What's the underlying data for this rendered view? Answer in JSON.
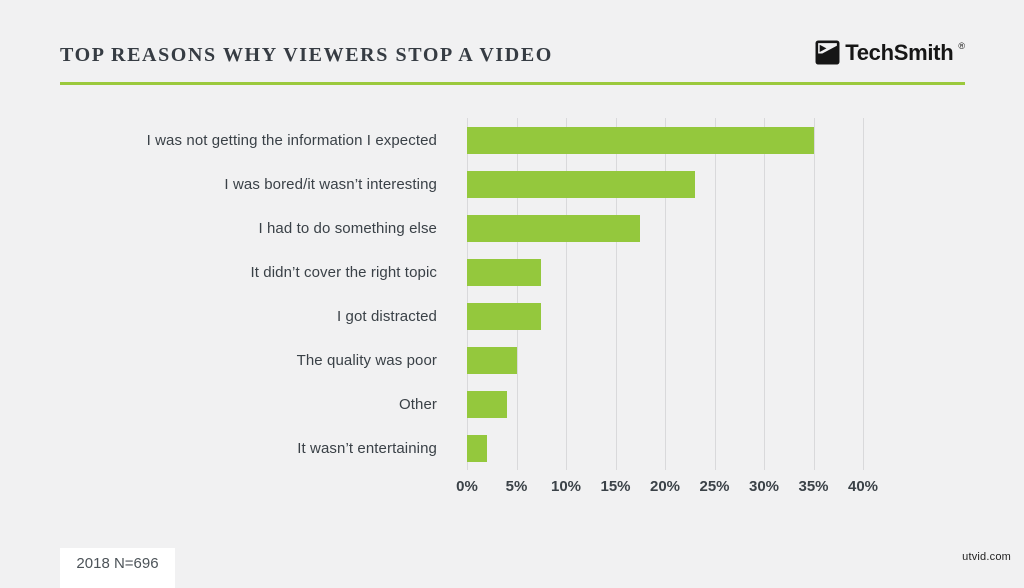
{
  "header": {
    "title": "TOP REASONS WHY VIEWERS STOP A VIDEO",
    "logo": {
      "text": "TechSmith",
      "registered": "®"
    }
  },
  "chart_data": {
    "type": "bar",
    "orientation": "horizontal",
    "title": "TOP REASONS WHY VIEWERS STOP A VIDEO",
    "categories": [
      "I was not getting the information I expected",
      "I was bored/it wasn’t interesting",
      "I had to do something else",
      "It didn’t cover the right topic",
      "I got distracted",
      "The quality was poor",
      "Other",
      "It wasn’t entertaining"
    ],
    "values": [
      35,
      23,
      17.5,
      7.5,
      7.5,
      5,
      4,
      2
    ],
    "unit": "%",
    "xlim": [
      0,
      40
    ],
    "xticks": [
      0,
      5,
      10,
      15,
      20,
      25,
      30,
      35,
      40
    ],
    "xtick_labels": [
      "0%",
      "5%",
      "10%",
      "15%",
      "20%",
      "25%",
      "30%",
      "35%",
      "40%"
    ],
    "grid": true,
    "legend": "none",
    "bar_color": "#94c83d"
  },
  "footer": {
    "sample_note": "2018 N=696"
  },
  "watermark": "utvid.com",
  "colors": {
    "background": "#f1f1f2",
    "accent_green": "#9bc93c",
    "bar_green": "#94c83d",
    "grid": "#d9d9db",
    "title_text": "#363c43",
    "label_text": "#3a4147"
  }
}
